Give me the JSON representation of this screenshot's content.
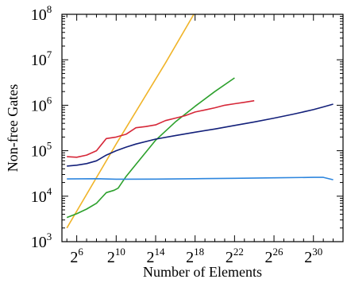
{
  "chart_data": {
    "type": "line",
    "xlabel": "Number of Elements",
    "ylabel": "Non-free Gates",
    "x_scale": "log2",
    "y_scale": "log10",
    "xlim": [
      4.5,
      33.0
    ],
    "ylim": [
      1000,
      100000000
    ],
    "x_ticks": [
      {
        "exp": 6,
        "label": "2",
        "sup": "6"
      },
      {
        "exp": 10,
        "label": "2",
        "sup": "10"
      },
      {
        "exp": 14,
        "label": "2",
        "sup": "14"
      },
      {
        "exp": 18,
        "label": "2",
        "sup": "18"
      },
      {
        "exp": 22,
        "label": "2",
        "sup": "22"
      },
      {
        "exp": 26,
        "label": "2",
        "sup": "26"
      },
      {
        "exp": 30,
        "label": "2",
        "sup": "30"
      }
    ],
    "y_ticks": [
      {
        "exp": 3,
        "label": "10",
        "sup": "3"
      },
      {
        "exp": 4,
        "label": "10",
        "sup": "4"
      },
      {
        "exp": 5,
        "label": "10",
        "sup": "5"
      },
      {
        "exp": 6,
        "label": "10",
        "sup": "6"
      },
      {
        "exp": 7,
        "label": "10",
        "sup": "7"
      },
      {
        "exp": 8,
        "label": "10",
        "sup": "8"
      }
    ],
    "grid": false,
    "series": [
      {
        "color": "#f0b429",
        "x": [
          5.0,
          10.0,
          15.0,
          20.0
        ],
        "y": [
          2000,
          140000,
          8500000,
          620000000
        ]
      },
      {
        "color": "#2ca02c",
        "x": [
          5.0,
          6.0,
          7.0,
          8.0,
          9.0,
          9.8,
          10.2,
          11.0,
          12.0,
          14.0,
          16.0,
          18.0,
          20.0,
          22.0
        ],
        "y": [
          3400,
          4100,
          5200,
          7000,
          12000,
          13500,
          15000,
          27000,
          50000,
          170000,
          430000,
          950000,
          2000000,
          4000000
        ]
      },
      {
        "color": "#d62738",
        "x": [
          5.0,
          6.0,
          7.0,
          8.0,
          9.0,
          10.0,
          11.0,
          12.0,
          13.0,
          14.0,
          15.0,
          16.0,
          17.0,
          18.0,
          19.0,
          20.0,
          21.0,
          22.0,
          23.0,
          24.0
        ],
        "y": [
          74000,
          72000,
          80000,
          100000,
          185000,
          200000,
          230000,
          320000,
          340000,
          370000,
          460000,
          520000,
          590000,
          710000,
          790000,
          880000,
          1000000,
          1080000,
          1160000,
          1260000
        ]
      },
      {
        "color": "#13207a",
        "x": [
          5.0,
          6.0,
          7.0,
          8.0,
          9.0,
          10.0,
          11.0,
          12.0,
          14.0,
          16.0,
          18.0,
          20.0,
          22.0,
          24.0,
          26.0,
          28.0,
          30.0,
          31.0,
          32.0
        ],
        "y": [
          46000,
          48000,
          52000,
          60000,
          80000,
          100000,
          120000,
          140000,
          180000,
          215000,
          255000,
          300000,
          360000,
          430000,
          520000,
          640000,
          800000,
          920000,
          1060000
        ]
      },
      {
        "color": "#2e86de",
        "x": [
          5.0,
          8.0,
          10.0,
          14.0,
          18.0,
          22.0,
          26.0,
          30.0,
          31.0,
          32.0
        ],
        "y": [
          24000,
          24200,
          23700,
          23800,
          24200,
          24700,
          25300,
          26000,
          26000,
          23000
        ]
      }
    ]
  }
}
